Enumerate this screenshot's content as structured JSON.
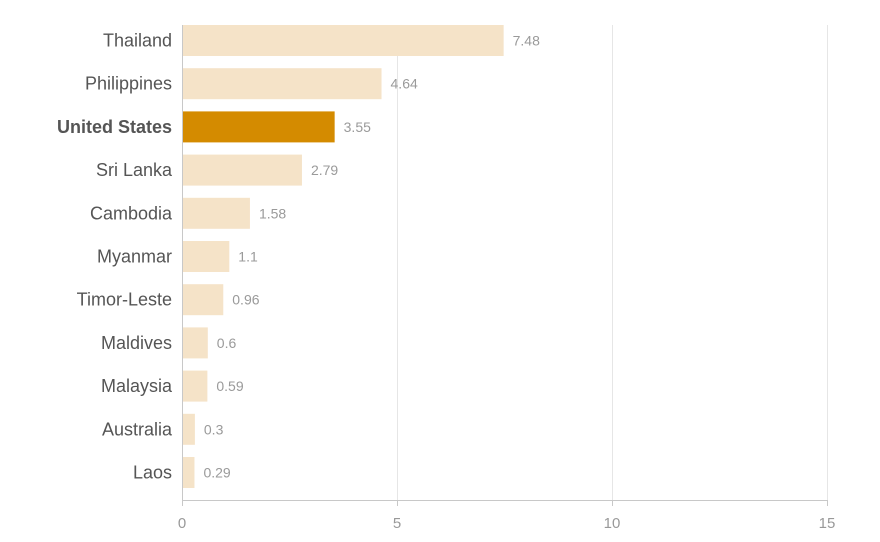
{
  "chart_data": {
    "type": "bar",
    "orientation": "horizontal",
    "categories": [
      "Thailand",
      "Philippines",
      "United States",
      "Sri Lanka",
      "Cambodia",
      "Myanmar",
      "Timor-Leste",
      "Maldives",
      "Malaysia",
      "Australia",
      "Laos"
    ],
    "values": [
      7.48,
      4.64,
      3.55,
      2.79,
      1.58,
      1.1,
      0.96,
      0.6,
      0.59,
      0.3,
      0.29
    ],
    "value_labels": [
      "7.48",
      "4.64",
      "3.55",
      "2.79",
      "1.58",
      "1.1",
      "0.96",
      "0.6",
      "0.59",
      "0.3",
      "0.29"
    ],
    "highlight": "United States",
    "xlim": [
      0,
      15
    ],
    "xticks": [
      0,
      5,
      10,
      15
    ],
    "xtick_labels": [
      "0",
      "5",
      "10",
      "15"
    ],
    "grid": true,
    "colors": {
      "bar": "#f5e3c8",
      "highlight": "#d48b00"
    }
  }
}
